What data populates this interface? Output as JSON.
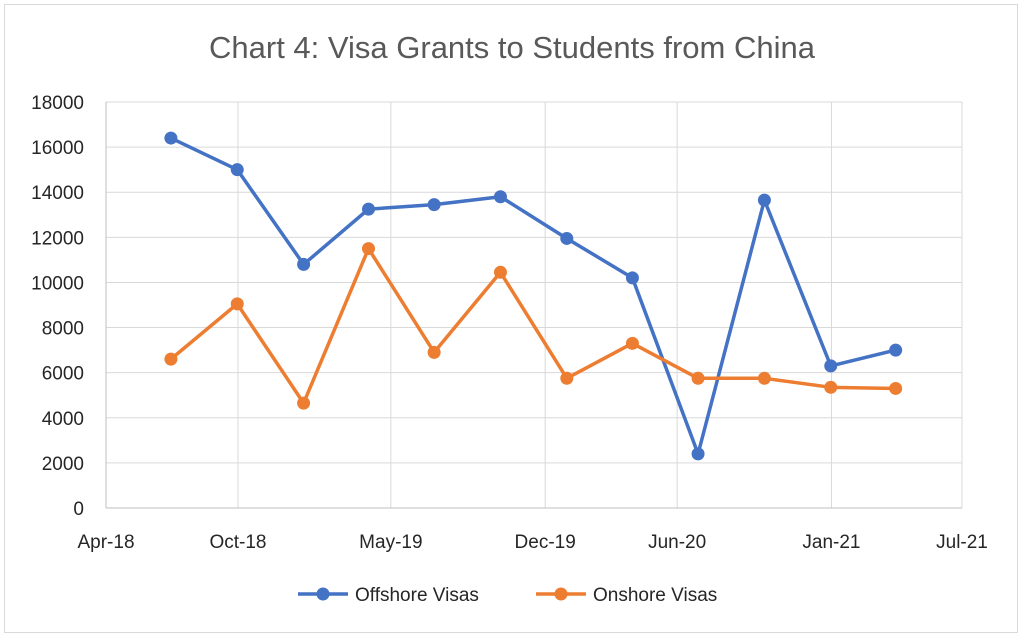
{
  "chart_data": {
    "type": "line",
    "title": "Chart 4: Visa Grants to Students from China",
    "xlabel": "",
    "ylabel": "",
    "x_axis": {
      "type": "date",
      "range": [
        "2018-04-01",
        "2021-07-01"
      ],
      "tick_values": [
        "2018-04-01",
        "2018-10-01",
        "2019-05-01",
        "2019-12-01",
        "2020-06-01",
        "2021-01-01",
        "2021-07-01"
      ],
      "tick_labels": [
        "Apr-18",
        "Oct-18",
        "May-19",
        "Dec-19",
        "Jun-20",
        "Jan-21",
        "Jul-21"
      ]
    },
    "y_axis": {
      "range": [
        0,
        18000
      ],
      "tick_labels": [
        "0",
        "2000",
        "4000",
        "6000",
        "8000",
        "10000",
        "12000",
        "14000",
        "16000",
        "18000"
      ]
    },
    "grid": true,
    "legend_position": "bottom",
    "x": [
      "2018-06-30",
      "2018-09-30",
      "2018-12-31",
      "2019-03-31",
      "2019-06-30",
      "2019-09-30",
      "2019-12-31",
      "2020-03-31",
      "2020-06-30",
      "2020-09-30",
      "2020-12-31",
      "2021-03-31"
    ],
    "series": [
      {
        "name": "Offshore Visas",
        "color": "#4472C4",
        "values": [
          16400,
          15000,
          10800,
          13250,
          13450,
          13800,
          11950,
          10200,
          2400,
          13650,
          6300,
          7000
        ]
      },
      {
        "name": "Onshore Visas",
        "color": "#ED7D31",
        "values": [
          6600,
          9050,
          4650,
          11500,
          6900,
          10450,
          5750,
          7300,
          5750,
          5750,
          5350,
          5300
        ]
      }
    ]
  }
}
